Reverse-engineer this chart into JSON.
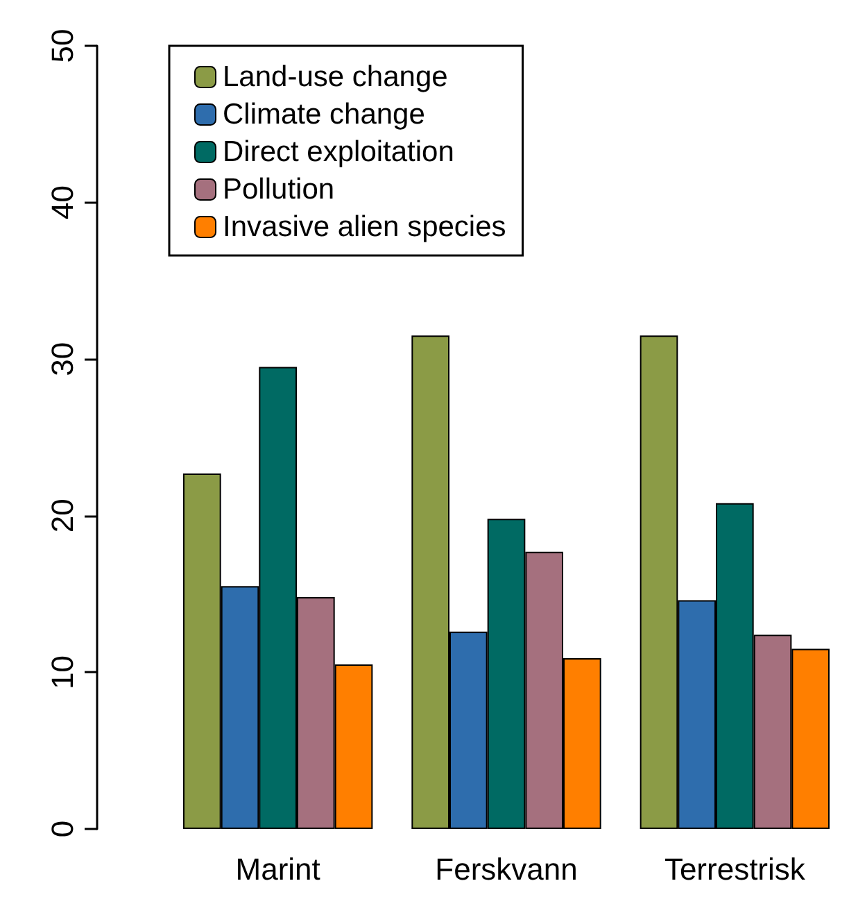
{
  "chart_data": {
    "type": "bar",
    "categories": [
      "Marint",
      "Ferskvann",
      "Terrestrisk"
    ],
    "series": [
      {
        "name": "Land-use change",
        "color": "#8b9b46",
        "values": [
          22.7,
          31.5,
          31.5
        ]
      },
      {
        "name": "Climate change",
        "color": "#2e6dad",
        "values": [
          15.5,
          12.6,
          14.6
        ]
      },
      {
        "name": "Direct exploitation",
        "color": "#006a63",
        "values": [
          29.5,
          19.8,
          20.8
        ]
      },
      {
        "name": "Pollution",
        "color": "#a5707e",
        "values": [
          14.8,
          17.7,
          12.4
        ]
      },
      {
        "name": "Invasive alien species",
        "color": "#ff7f00",
        "values": [
          10.5,
          10.9,
          11.5
        ]
      }
    ],
    "ylim": [
      0,
      50
    ],
    "yticks": [
      0,
      10,
      20,
      30,
      40,
      50
    ],
    "grid": false,
    "legend": "top left"
  }
}
